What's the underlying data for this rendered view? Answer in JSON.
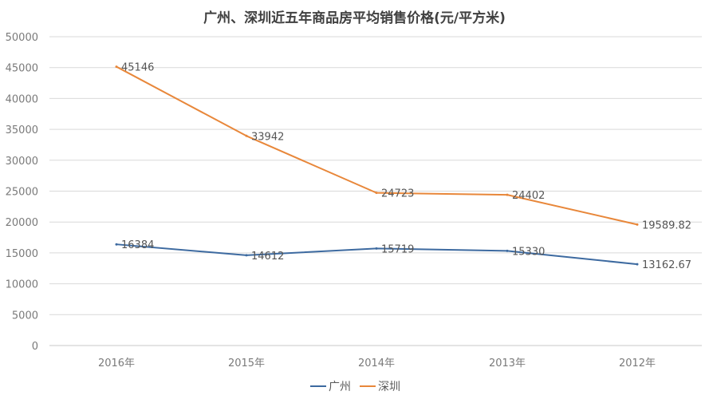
{
  "chart_data": {
    "type": "line",
    "title": "广州、深圳近五年商品房平均销售价格(元/平方米)",
    "categories": [
      "2016年",
      "2015年",
      "2014年",
      "2013年",
      "2012年"
    ],
    "series": [
      {
        "name": "广州",
        "color": "#3d6aa0",
        "values": [
          16384,
          14612,
          15719,
          15330,
          13162.67
        ],
        "labels": [
          "16384",
          "14612",
          "15719",
          "15330",
          "13162.67"
        ]
      },
      {
        "name": "深圳",
        "color": "#e8873a",
        "values": [
          45146,
          33942,
          24723,
          24402,
          19589.82
        ],
        "labels": [
          "45146",
          "33942",
          "24723",
          "24402",
          "19589.82"
        ]
      }
    ],
    "ylim": [
      0,
      50000
    ],
    "yticks": [
      "0",
      "5000",
      "10000",
      "15000",
      "20000",
      "25000",
      "30000",
      "35000",
      "40000",
      "45000",
      "50000"
    ],
    "grid": true,
    "legend_position": "bottom"
  }
}
